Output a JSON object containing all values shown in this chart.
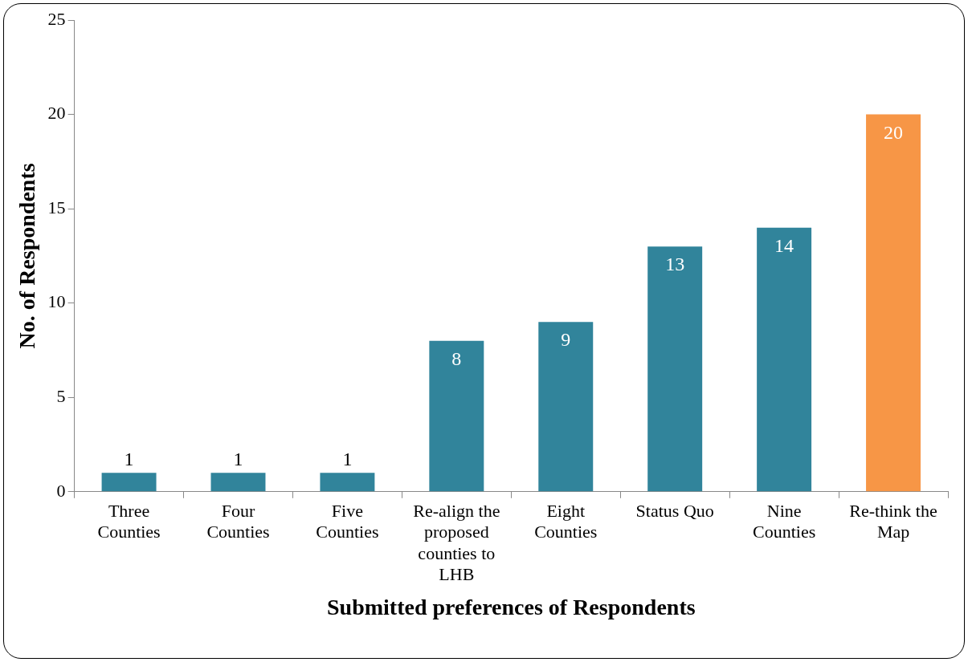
{
  "chart_data": {
    "type": "bar",
    "xlabel": "Submitted preferences of Respondents",
    "ylabel": "No. of Respondents",
    "categories": [
      "Three Counties",
      "Four Counties",
      "Five Counties",
      "Re-align the proposed counties to LHB",
      "Eight Counties",
      "Status Quo",
      "Nine Counties",
      "Re-think the Map"
    ],
    "values": [
      1,
      1,
      1,
      8,
      9,
      13,
      14,
      20
    ],
    "colors": [
      "#31849b",
      "#31849b",
      "#31849b",
      "#31849b",
      "#31849b",
      "#31849b",
      "#31849b",
      "#f79646"
    ],
    "ylim": [
      0,
      25
    ],
    "yticks": [
      0,
      5,
      10,
      15,
      20,
      25
    ],
    "grid": false,
    "legend": false,
    "data_labels": true
  }
}
